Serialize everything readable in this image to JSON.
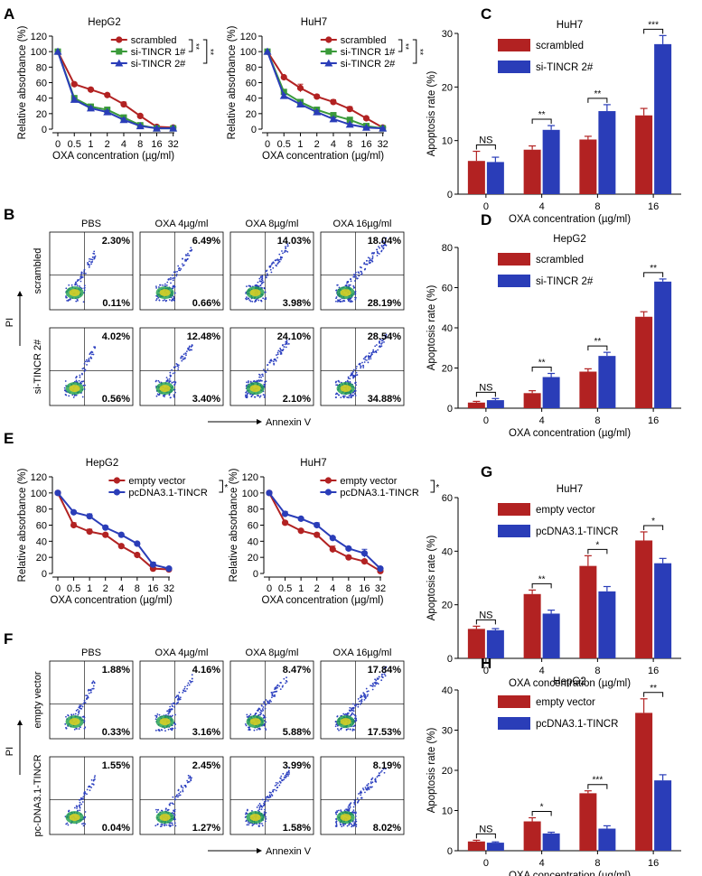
{
  "colors": {
    "red": "#b22222",
    "blue": "#2a3db8",
    "green": "#3a9a3a",
    "axis": "#000000"
  },
  "panel_labels": [
    "A",
    "B",
    "C",
    "D",
    "E",
    "F",
    "G",
    "H"
  ],
  "chart_data": [
    {
      "panel": "A",
      "type": "line",
      "title": "HepG2",
      "xlabel": "OXA concentration (µg/ml)",
      "ylabel": "Relative absorbance (%)",
      "categories": [
        "0",
        "0.5",
        "1",
        "2",
        "4",
        "8",
        "16",
        "32"
      ],
      "yticks": [
        0,
        20,
        40,
        60,
        80,
        100,
        120
      ],
      "ylim": [
        0,
        120
      ],
      "series": [
        {
          "name": "scrambled",
          "color": "#b22222",
          "marker": "circle",
          "values": [
            100,
            58,
            51,
            44,
            32,
            17,
            3,
            2
          ],
          "err": [
            0,
            2,
            2,
            2,
            3,
            2,
            1,
            1
          ]
        },
        {
          "name": "si-TINCR 1#",
          "color": "#3a9a3a",
          "marker": "square",
          "values": [
            100,
            40,
            29,
            25,
            15,
            5,
            1,
            1
          ],
          "err": [
            0,
            2,
            3,
            2,
            2,
            1,
            1,
            1
          ]
        },
        {
          "name": "si-TINCR 2#",
          "color": "#2a3db8",
          "marker": "triangle",
          "values": [
            100,
            38,
            27,
            22,
            12,
            4,
            1,
            1
          ],
          "err": [
            0,
            2,
            2,
            2,
            2,
            1,
            1,
            1
          ]
        }
      ],
      "brackets": [
        "**",
        "**"
      ]
    },
    {
      "panel": "A",
      "type": "line",
      "title": "HuH7",
      "xlabel": "OXA concentration (µg/ml)",
      "ylabel": "Relative absorbance (%)",
      "categories": [
        "0",
        "0.5",
        "1",
        "2",
        "4",
        "8",
        "16",
        "32"
      ],
      "yticks": [
        0,
        20,
        40,
        60,
        80,
        100,
        120
      ],
      "ylim": [
        0,
        120
      ],
      "series": [
        {
          "name": "scrambled",
          "color": "#b22222",
          "marker": "circle",
          "values": [
            100,
            67,
            53,
            42,
            35,
            26,
            14,
            2
          ],
          "err": [
            0,
            2,
            5,
            2,
            3,
            3,
            2,
            1
          ]
        },
        {
          "name": "si-TINCR 1#",
          "color": "#3a9a3a",
          "marker": "square",
          "values": [
            100,
            48,
            35,
            25,
            18,
            12,
            4,
            1
          ],
          "err": [
            0,
            3,
            2,
            2,
            2,
            2,
            1,
            1
          ]
        },
        {
          "name": "si-TINCR 2#",
          "color": "#2a3db8",
          "marker": "triangle",
          "values": [
            100,
            43,
            32,
            22,
            13,
            6,
            2,
            1
          ],
          "err": [
            0,
            2,
            2,
            2,
            2,
            1,
            1,
            1
          ]
        }
      ],
      "brackets": [
        "**",
        "**"
      ]
    },
    {
      "panel": "C",
      "type": "bar",
      "title": "HuH7",
      "xlabel": "OXA concentration (µg/ml)",
      "ylabel": "Apoptosis rate (%)",
      "categories": [
        "0",
        "4",
        "8",
        "16"
      ],
      "yticks": [
        0,
        10,
        20,
        30
      ],
      "ylim": [
        0,
        30
      ],
      "series": [
        {
          "name": "scrambled",
          "color": "#b22222",
          "values": [
            6.2,
            8.3,
            10.2,
            14.7
          ],
          "err": [
            1.8,
            0.7,
            0.6,
            1.3
          ]
        },
        {
          "name": "si-TINCR 2#",
          "color": "#2a3db8",
          "values": [
            6.0,
            12.0,
            15.5,
            28.0
          ],
          "err": [
            0.9,
            0.8,
            1.2,
            1.6
          ]
        }
      ],
      "significance": [
        "NS",
        "**",
        "**",
        "***"
      ]
    },
    {
      "panel": "D",
      "type": "bar",
      "title": "HepG2",
      "xlabel": "OXA concentration (µg/ml)",
      "ylabel": "Apoptosis rate (%)",
      "categories": [
        "0",
        "4",
        "8",
        "16"
      ],
      "yticks": [
        0,
        20,
        40,
        60,
        80
      ],
      "ylim": [
        0,
        80
      ],
      "series": [
        {
          "name": "scrambled",
          "color": "#b22222",
          "values": [
            2.8,
            7.5,
            18.2,
            45.5
          ],
          "err": [
            0.6,
            1.2,
            1.4,
            2.5
          ]
        },
        {
          "name": "si-TINCR 2#",
          "color": "#2a3db8",
          "values": [
            4.0,
            15.5,
            26.0,
            63.0
          ],
          "err": [
            0.8,
            1.8,
            1.8,
            1.3
          ]
        }
      ],
      "significance": [
        "NS",
        "**",
        "**",
        "**"
      ]
    },
    {
      "panel": "E",
      "type": "line",
      "title": "HepG2",
      "xlabel": "OXA concentration (µg/ml)",
      "ylabel": "Relative absorbance (%)",
      "categories": [
        "0",
        "0.5",
        "1",
        "2",
        "4",
        "8",
        "16",
        "32"
      ],
      "yticks": [
        0,
        20,
        40,
        60,
        80,
        100,
        120
      ],
      "ylim": [
        0,
        120
      ],
      "series": [
        {
          "name": "empty vector",
          "color": "#b22222",
          "marker": "circle",
          "values": [
            100,
            60,
            52,
            48,
            34,
            23,
            6,
            5
          ],
          "err": [
            0,
            3,
            3,
            2,
            1,
            1,
            2,
            1
          ]
        },
        {
          "name": "pcDNA3.1-TINCR",
          "color": "#2a3db8",
          "marker": "circle",
          "values": [
            100,
            76,
            71,
            57,
            48,
            37,
            11,
            6
          ],
          "err": [
            0,
            2,
            3,
            2,
            1,
            2,
            3,
            1
          ]
        }
      ],
      "brackets": [
        "*"
      ]
    },
    {
      "panel": "E",
      "type": "line",
      "title": "HuH7",
      "xlabel": "OXA concentration (µg/ml)",
      "ylabel": "Relative absorbance (%)",
      "categories": [
        "0",
        "0.5",
        "1",
        "2",
        "4",
        "8",
        "16",
        "32"
      ],
      "yticks": [
        0,
        20,
        40,
        60,
        80,
        100,
        120
      ],
      "ylim": [
        0,
        120
      ],
      "series": [
        {
          "name": "empty vector",
          "color": "#b22222",
          "marker": "circle",
          "values": [
            100,
            63,
            53,
            48,
            30,
            20,
            15,
            3
          ],
          "err": [
            0,
            2,
            2,
            2,
            4,
            2,
            2,
            1
          ]
        },
        {
          "name": "pcDNA3.1-TINCR",
          "color": "#2a3db8",
          "marker": "circle",
          "values": [
            100,
            74,
            68,
            60,
            44,
            31,
            25,
            6
          ],
          "err": [
            0,
            3,
            2,
            3,
            2,
            2,
            5,
            2
          ]
        }
      ],
      "brackets": [
        "*"
      ]
    },
    {
      "panel": "G",
      "type": "bar",
      "title": "HuH7",
      "xlabel": "OXA concentration (µg/ml)",
      "ylabel": "Apoptosis rate (%)",
      "categories": [
        "0",
        "4",
        "8",
        "16"
      ],
      "yticks": [
        0,
        20,
        40,
        60
      ],
      "ylim": [
        0,
        60
      ],
      "series": [
        {
          "name": "empty vector",
          "color": "#b22222",
          "values": [
            11.0,
            24.0,
            34.5,
            44.0
          ],
          "err": [
            1.0,
            1.5,
            3.8,
            3.2
          ]
        },
        {
          "name": "pcDNA3.1-TINCR",
          "color": "#2a3db8",
          "values": [
            10.5,
            16.7,
            25.0,
            35.5
          ],
          "err": [
            0.6,
            1.3,
            1.8,
            1.8
          ]
        }
      ],
      "significance": [
        "NS",
        "**",
        "*",
        "*"
      ]
    },
    {
      "panel": "H",
      "type": "bar",
      "title": "HepG2",
      "xlabel": "OXA concentration (µg/ml)",
      "ylabel": "Apoptosis rate (%)",
      "categories": [
        "0",
        "4",
        "8",
        "16"
      ],
      "yticks": [
        0,
        10,
        20,
        30,
        40
      ],
      "ylim": [
        0,
        40
      ],
      "series": [
        {
          "name": "empty vector",
          "color": "#b22222",
          "values": [
            2.3,
            7.3,
            14.3,
            34.3
          ],
          "err": [
            0.3,
            0.9,
            0.6,
            3.5
          ]
        },
        {
          "name": "pcDNA3.1-TINCR",
          "color": "#2a3db8",
          "values": [
            2.0,
            4.3,
            5.5,
            17.5
          ],
          "err": [
            0.2,
            0.3,
            0.7,
            1.4
          ]
        }
      ],
      "significance": [
        "NS",
        "*",
        "***",
        "**"
      ]
    }
  ],
  "flow": [
    {
      "panel": "B",
      "columns": [
        "PBS",
        "OXA 4µg/ml",
        "OXA 8µg/ml",
        "OXA 16µg/ml"
      ],
      "rows": [
        {
          "name": "scrambled",
          "upper": [
            "2.30%",
            "6.49%",
            "14.03%",
            "18.04%"
          ],
          "lower": [
            "0.11%",
            "0.66%",
            "3.98%",
            "28.19%"
          ]
        },
        {
          "name": "si-TINCR 2#",
          "upper": [
            "4.02%",
            "12.48%",
            "24.10%",
            "28.54%"
          ],
          "lower": [
            "0.56%",
            "3.40%",
            "2.10%",
            "34.88%"
          ]
        }
      ],
      "yaxis": "PI",
      "xaxis": "Annexin V"
    },
    {
      "panel": "F",
      "columns": [
        "PBS",
        "OXA 4µg/ml",
        "OXA 8µg/ml",
        "OXA 16µg/ml"
      ],
      "rows": [
        {
          "name": "empty vector",
          "upper": [
            "1.88%",
            "4.16%",
            "8.47%",
            "17.84%"
          ],
          "lower": [
            "0.33%",
            "3.16%",
            "5.88%",
            "17.53%"
          ]
        },
        {
          "name": "pc-DNA3.1-TINCR",
          "upper": [
            "1.55%",
            "2.45%",
            "3.99%",
            "8.19%"
          ],
          "lower": [
            "0.04%",
            "1.27%",
            "1.58%",
            "8.02%"
          ]
        }
      ],
      "yaxis": "PI",
      "xaxis": "Annexin V"
    }
  ]
}
